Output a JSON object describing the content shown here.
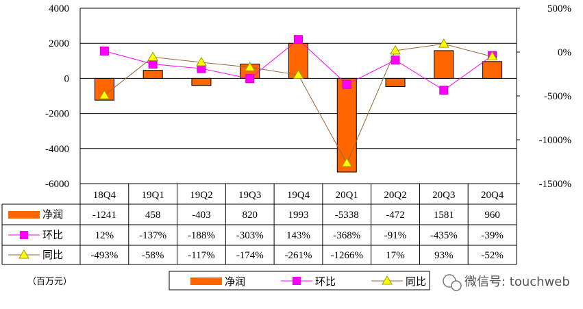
{
  "chart_data": {
    "type": "bar",
    "categories": [
      "18Q4",
      "19Q1",
      "19Q2",
      "19Q3",
      "19Q4",
      "20Q1",
      "20Q2",
      "20Q3",
      "20Q4"
    ],
    "series": [
      {
        "name": "净润",
        "kind": "bar",
        "axis": "left",
        "color": "#ff6600",
        "values": [
          -1241,
          458,
          -403,
          820,
          1993,
          -5338,
          -472,
          1581,
          960
        ],
        "labels": [
          "-1241",
          "458",
          "-403",
          "820",
          "1993",
          "-5338",
          "-472",
          "1581",
          "960"
        ]
      },
      {
        "name": "环比",
        "kind": "line",
        "axis": "right",
        "color": "#ff00ff",
        "marker": "square",
        "values": [
          12,
          -137,
          -188,
          -303,
          143,
          -368,
          -91,
          -435,
          -39
        ],
        "labels": [
          "12%",
          "-137%",
          "-188%",
          "-303%",
          "143%",
          "-368%",
          "-91%",
          "-435%",
          "-39%"
        ]
      },
      {
        "name": "同比",
        "kind": "line",
        "axis": "right",
        "color": "#996633",
        "marker": "triangle",
        "marker_color": "#ffff00",
        "values": [
          -493,
          -58,
          -117,
          -174,
          -261,
          -1266,
          17,
          93,
          -52
        ],
        "labels": [
          "-493%",
          "-58%",
          "-117%",
          "-174%",
          "-261%",
          "-1266%",
          "17%",
          "93%",
          "-52%"
        ]
      }
    ],
    "y_left": {
      "ylim": [
        -6000,
        4000
      ],
      "ticks": [
        "4000",
        "2000",
        "0",
        "-2000",
        "-4000",
        "-6000"
      ]
    },
    "y_right": {
      "ylim": [
        -1500,
        500
      ],
      "ticks": [
        "500%",
        "0%",
        "-500%",
        "-1000%",
        "-1500%"
      ]
    },
    "grid": true,
    "legend": "bottom-center",
    "unit_label": "（百万元）"
  },
  "legend": {
    "items": [
      "净润",
      "环比",
      "同比"
    ]
  },
  "watermark": {
    "text": "微信号: touchweb"
  }
}
